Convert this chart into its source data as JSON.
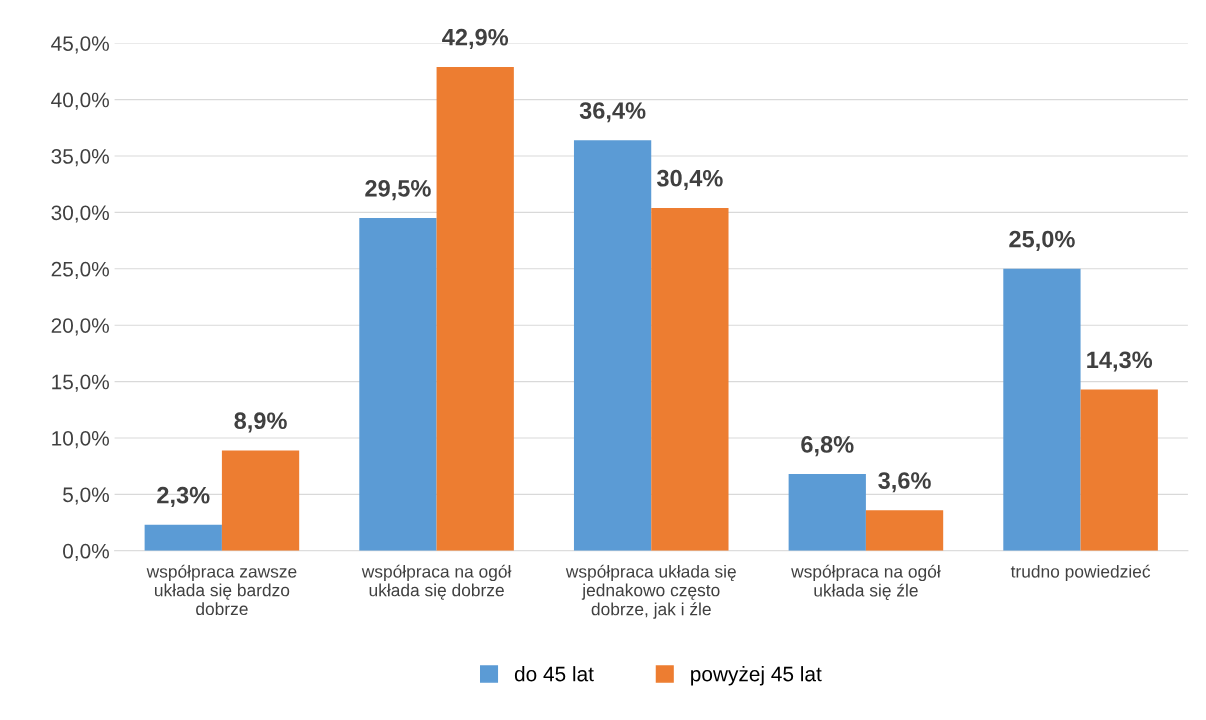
{
  "chart_data": {
    "type": "bar",
    "categories": [
      "współpraca zawsze\nukłada się bardzo\ndobrze",
      "współpraca na ogół\nukłada się dobrze",
      "współpraca układa się\njednakowo często\ndobrze, jak i źle",
      "współpraca na ogół\nukłada się źle",
      "trudno powiedzieć"
    ],
    "series": [
      {
        "name": "do 45 lat",
        "color": "#5b9bd5",
        "values": [
          2.3,
          29.5,
          36.4,
          6.8,
          25.0
        ],
        "value_labels": [
          "2,3%",
          "29,5%",
          "36,4%",
          "6,8%",
          "25,0%"
        ]
      },
      {
        "name": "powyżej 45 lat",
        "color": "#ed7d31",
        "values": [
          8.9,
          42.9,
          30.4,
          3.6,
          14.3
        ],
        "value_labels": [
          "8,9%",
          "42,9%",
          "30,4%",
          "3,6%",
          "14,3%"
        ]
      }
    ],
    "ylim": [
      0,
      45
    ],
    "yticks": [
      {
        "value": 0,
        "label": "0,0%"
      },
      {
        "value": 5,
        "label": "5,0%"
      },
      {
        "value": 10,
        "label": "10,0%"
      },
      {
        "value": 15,
        "label": "15,0%"
      },
      {
        "value": 20,
        "label": "20,0%"
      },
      {
        "value": 25,
        "label": "25,0%"
      },
      {
        "value": 30,
        "label": "30,0%"
      },
      {
        "value": 35,
        "label": "35,0%"
      },
      {
        "value": 40,
        "label": "40,0%"
      },
      {
        "value": 45,
        "label": "45,0%"
      }
    ],
    "grid": "y",
    "legend": "bottom"
  }
}
